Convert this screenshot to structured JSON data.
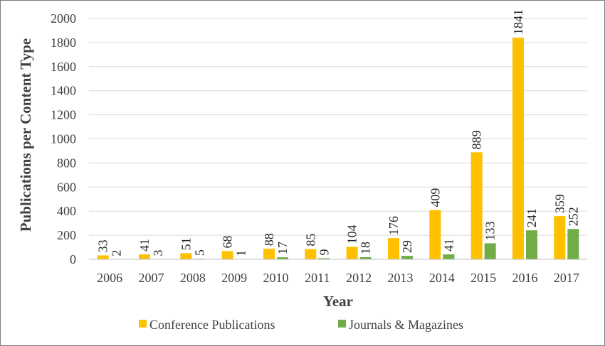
{
  "chart_data": {
    "type": "bar",
    "categories": [
      "2006",
      "2007",
      "2008",
      "2009",
      "2010",
      "2011",
      "2012",
      "2013",
      "2014",
      "2015",
      "2016",
      "2017"
    ],
    "series": [
      {
        "name": "Conference Publications",
        "color": "#ffc000",
        "values": [
          33,
          41,
          51,
          68,
          88,
          85,
          104,
          176,
          409,
          889,
          1841,
          359
        ]
      },
      {
        "name": "Journals & Magazines",
        "color": "#70ad47",
        "values": [
          2,
          3,
          5,
          1,
          17,
          9,
          18,
          29,
          41,
          133,
          241,
          252
        ]
      }
    ],
    "title": "",
    "xlabel": "Year",
    "ylabel": "Publications per Content Type",
    "ylim": [
      0,
      2000
    ],
    "yticks": [
      0,
      200,
      400,
      600,
      800,
      1000,
      1200,
      1400,
      1600,
      1800,
      2000
    ],
    "grid": true,
    "legend": "bottom"
  }
}
